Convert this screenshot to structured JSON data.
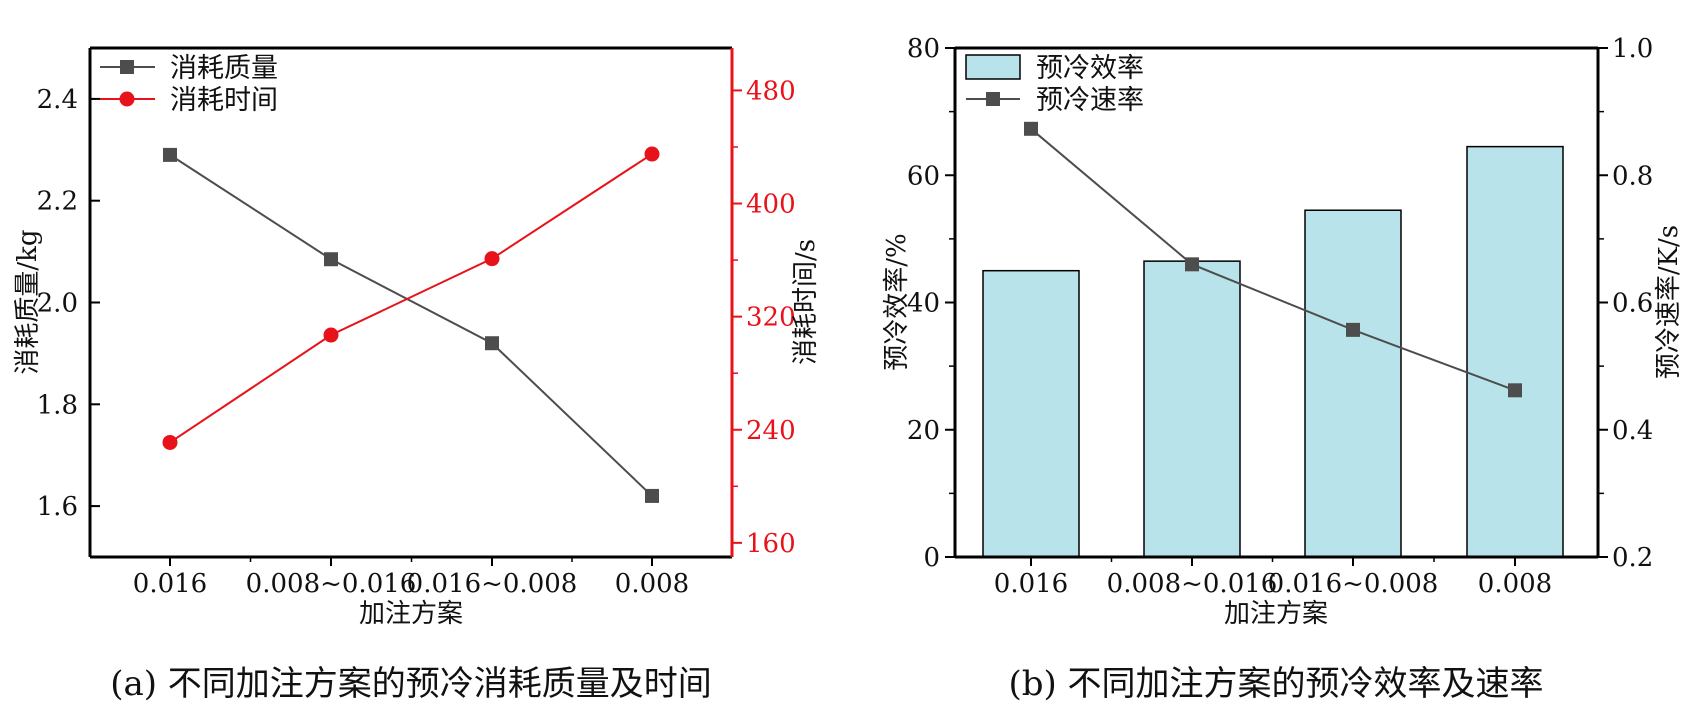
{
  "chart_data": [
    {
      "type": "line",
      "caption": "(a) 不同加注方案的预冷消耗质量及时间",
      "xlabel": "加注方案",
      "ylabel": "消耗质量/kg",
      "ylabel_right": "消耗时间/s",
      "categories": [
        "0.016",
        "0.008~0.016",
        "0.016~0.008",
        "0.008"
      ],
      "ylim": [
        1.5,
        2.5
      ],
      "yticks": [
        "1.6",
        "1.8",
        "2.0",
        "2.2",
        "2.4"
      ],
      "y2lim": [
        150,
        510
      ],
      "y2ticks": [
        "160",
        "240",
        "320",
        "400",
        "480"
      ],
      "legend_position": "top-left",
      "colors": {
        "mass": "#4d4d4d",
        "time": "#e8121a",
        "axis": "#000000",
        "right_axis": "#e8121a"
      },
      "series": [
        {
          "name": "消耗质量",
          "axis": "left",
          "marker": "square",
          "values": [
            2.29,
            2.085,
            1.92,
            1.62
          ]
        },
        {
          "name": "消耗时间",
          "axis": "right",
          "marker": "circle",
          "values": [
            231,
            307,
            361,
            435
          ]
        }
      ]
    },
    {
      "type": "bar",
      "caption": "(b) 不同加注方案的预冷效率及速率",
      "xlabel": "加注方案",
      "ylabel": "预冷效率/%",
      "ylabel_right": "预冷速率/K/s",
      "categories": [
        "0.016",
        "0.008~0.016",
        "0.016~0.008",
        "0.008"
      ],
      "ylim": [
        0,
        80
      ],
      "yticks": [
        "0",
        "20",
        "40",
        "60",
        "80"
      ],
      "y2lim": [
        0.2,
        1.0
      ],
      "y2ticks": [
        "0.2",
        "0.4",
        "0.6",
        "0.8",
        "1.0"
      ],
      "legend_position": "top-left",
      "colors": {
        "bar": "#b9e3ea",
        "line": "#4d4d4d",
        "axis": "#000000"
      },
      "series": [
        {
          "name": "预冷效率",
          "axis": "left",
          "kind": "bar",
          "values": [
            45.0,
            46.5,
            54.5,
            64.5
          ]
        },
        {
          "name": "预冷速率",
          "axis": "right",
          "kind": "line",
          "marker": "square",
          "values": [
            0.873,
            0.66,
            0.557,
            0.462
          ]
        }
      ]
    }
  ]
}
